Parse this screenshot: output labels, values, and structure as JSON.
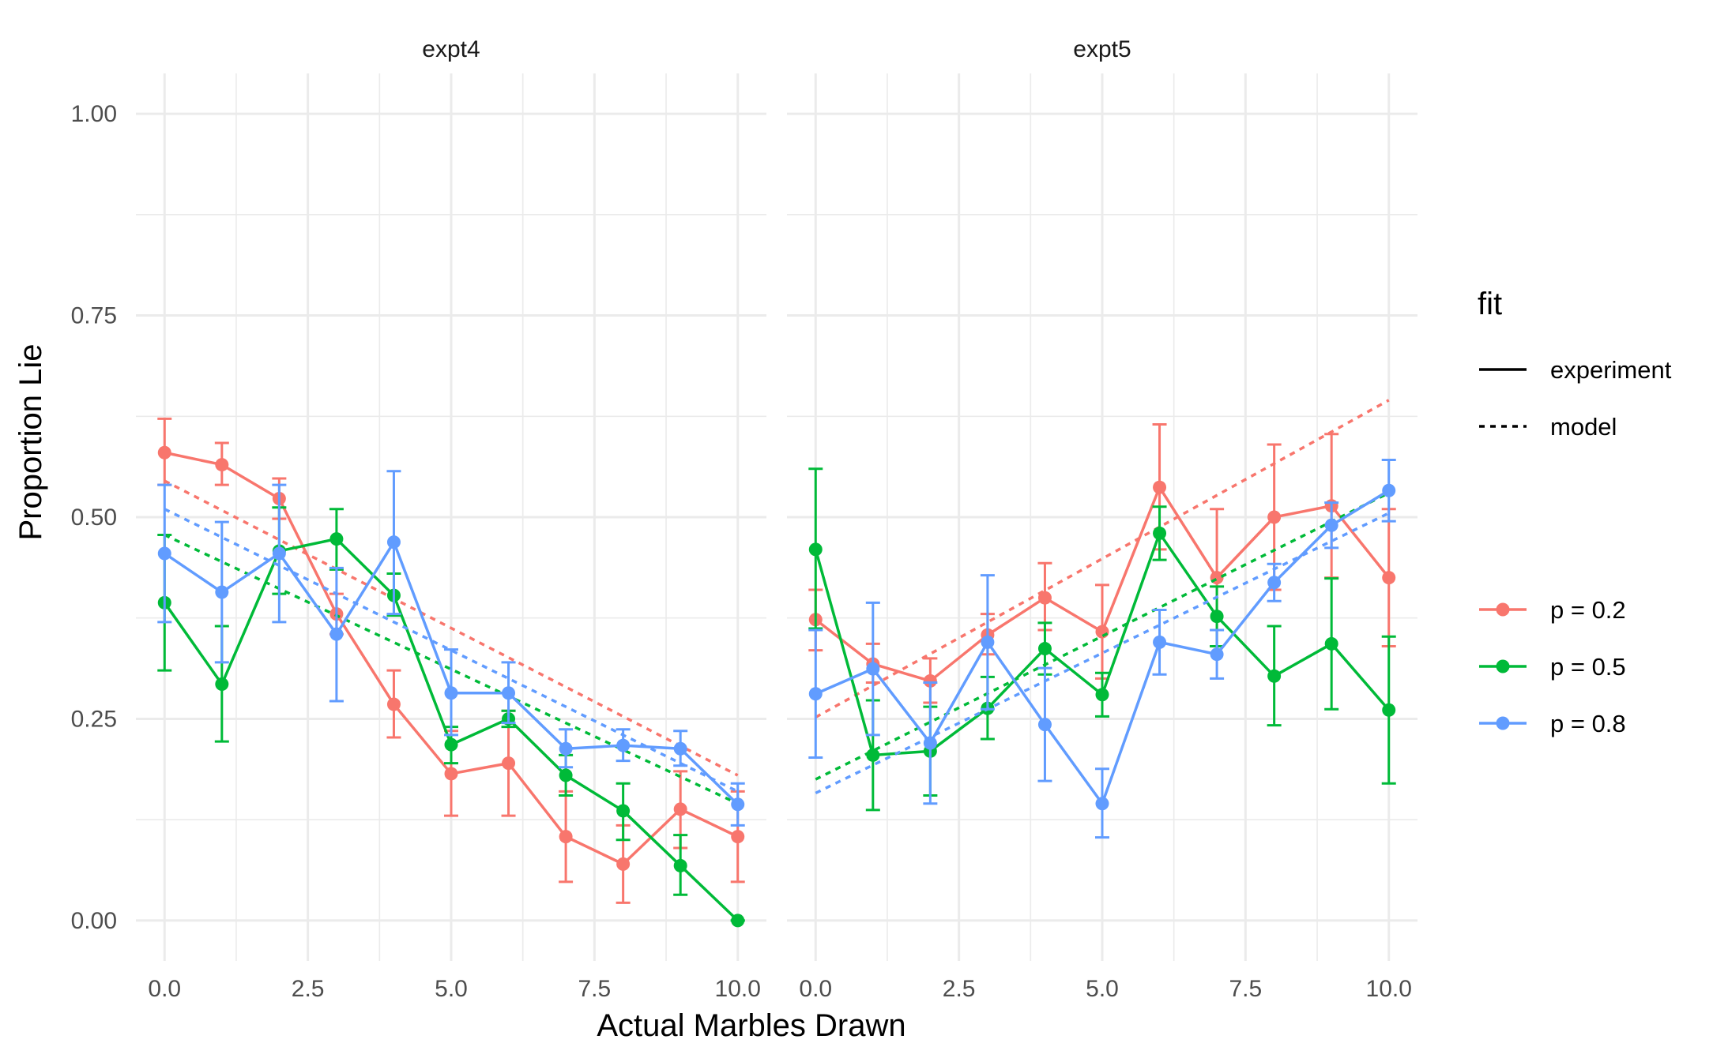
{
  "chart_data": {
    "type": "line",
    "xlabel": "Actual Marbles Drawn",
    "ylabel": "Proportion Lie",
    "xlim": [
      -0.5,
      10.5
    ],
    "ylim": [
      -0.05,
      1.05
    ],
    "x_ticks": [
      "0.0",
      "2.5",
      "5.0",
      "7.5",
      "10.0"
    ],
    "y_ticks": [
      "0.00",
      "0.25",
      "0.50",
      "0.75",
      "1.00"
    ],
    "grid": true,
    "legend": {
      "fit_title": "fit",
      "fit_entries": [
        {
          "label": "experiment",
          "linetype": "solid"
        },
        {
          "label": "model",
          "linetype": "dashed"
        }
      ],
      "color_entries": [
        {
          "label": "p = 0.2",
          "color": "#F8766D"
        },
        {
          "label": "p = 0.5",
          "color": "#00BA38"
        },
        {
          "label": "p = 0.8",
          "color": "#619CFF"
        }
      ]
    },
    "panels": [
      {
        "title": "expt4",
        "series": [
          {
            "name": "p = 0.2",
            "color": "#F8766D",
            "experiment": {
              "x": [
                0,
                1,
                2,
                3,
                4,
                5,
                6,
                7,
                8,
                9,
                10
              ],
              "y": [
                0.58,
                0.565,
                0.523,
                0.38,
                0.268,
                0.182,
                0.195,
                0.104,
                0.07,
                0.138,
                0.104
              ],
              "ylo": [
                0.54,
                0.54,
                0.498,
                0.355,
                0.227,
                0.13,
                0.13,
                0.048,
                0.022,
                0.09,
                0.048
              ],
              "yhi": [
                0.622,
                0.592,
                0.548,
                0.405,
                0.31,
                0.235,
                0.26,
                0.16,
                0.118,
                0.185,
                0.16
              ]
            },
            "model": {
              "x": [
                0,
                10
              ],
              "y": [
                0.545,
                0.18
              ]
            }
          },
          {
            "name": "p = 0.5",
            "color": "#00BA38",
            "experiment": {
              "x": [
                0,
                1,
                2,
                3,
                4,
                5,
                6,
                7,
                8,
                9,
                10
              ],
              "y": [
                0.394,
                0.293,
                0.458,
                0.473,
                0.403,
                0.218,
                0.25,
                0.18,
                0.136,
                0.068,
                0.0
              ],
              "ylo": [
                0.31,
                0.222,
                0.405,
                0.435,
                0.378,
                0.195,
                0.24,
                0.155,
                0.1,
                0.032,
                0.0
              ],
              "yhi": [
                0.478,
                0.365,
                0.512,
                0.51,
                0.43,
                0.24,
                0.26,
                0.205,
                0.17,
                0.106,
                0.0
              ]
            },
            "model": {
              "x": [
                0,
                10
              ],
              "y": [
                0.478,
                0.145
              ]
            }
          },
          {
            "name": "p = 0.8",
            "color": "#619CFF",
            "experiment": {
              "x": [
                0,
                1,
                2,
                3,
                4,
                5,
                6,
                7,
                8,
                9,
                10
              ],
              "y": [
                0.455,
                0.407,
                0.455,
                0.355,
                0.469,
                0.282,
                0.282,
                0.213,
                0.217,
                0.213,
                0.144
              ],
              "ylo": [
                0.37,
                0.32,
                0.37,
                0.272,
                0.38,
                0.23,
                0.245,
                0.19,
                0.198,
                0.192,
                0.118
              ],
              "yhi": [
                0.54,
                0.494,
                0.54,
                0.437,
                0.557,
                0.336,
                0.32,
                0.237,
                0.237,
                0.235,
                0.17
              ]
            },
            "model": {
              "x": [
                0,
                10
              ],
              "y": [
                0.51,
                0.16
              ]
            }
          }
        ]
      },
      {
        "title": "expt5",
        "series": [
          {
            "name": "p = 0.2",
            "color": "#F8766D",
            "experiment": {
              "x": [
                0,
                1,
                2,
                3,
                4,
                5,
                6,
                7,
                8,
                9,
                10
              ],
              "y": [
                0.373,
                0.318,
                0.297,
                0.354,
                0.4,
                0.358,
                0.537,
                0.425,
                0.5,
                0.514,
                0.425
              ],
              "ylo": [
                0.335,
                0.295,
                0.27,
                0.33,
                0.36,
                0.3,
                0.46,
                0.34,
                0.41,
                0.425,
                0.34
              ],
              "yhi": [
                0.41,
                0.343,
                0.325,
                0.38,
                0.443,
                0.416,
                0.615,
                0.51,
                0.59,
                0.603,
                0.51
              ]
            },
            "model": {
              "x": [
                0,
                10
              ],
              "y": [
                0.252,
                0.645
              ]
            }
          },
          {
            "name": "p = 0.5",
            "color": "#00BA38",
            "experiment": {
              "x": [
                0,
                1,
                2,
                3,
                4,
                5,
                6,
                7,
                8,
                9,
                10
              ],
              "y": [
                0.46,
                0.205,
                0.21,
                0.263,
                0.337,
                0.28,
                0.48,
                0.377,
                0.303,
                0.343,
                0.261
              ],
              "ylo": [
                0.362,
                0.137,
                0.155,
                0.225,
                0.305,
                0.253,
                0.447,
                0.34,
                0.242,
                0.262,
                0.17
              ],
              "yhi": [
                0.56,
                0.273,
                0.265,
                0.302,
                0.369,
                0.307,
                0.513,
                0.414,
                0.365,
                0.424,
                0.352
              ]
            },
            "model": {
              "x": [
                0,
                10
              ],
              "y": [
                0.175,
                0.53
              ]
            }
          },
          {
            "name": "p = 0.8",
            "color": "#619CFF",
            "experiment": {
              "x": [
                0,
                1,
                2,
                3,
                4,
                5,
                6,
                7,
                8,
                9,
                10
              ],
              "y": [
                0.281,
                0.312,
                0.22,
                0.345,
                0.243,
                0.145,
                0.345,
                0.33,
                0.419,
                0.49,
                0.533
              ],
              "ylo": [
                0.202,
                0.23,
                0.145,
                0.262,
                0.173,
                0.103,
                0.305,
                0.3,
                0.396,
                0.462,
                0.495
              ],
              "yhi": [
                0.36,
                0.394,
                0.295,
                0.428,
                0.313,
                0.188,
                0.385,
                0.36,
                0.442,
                0.518,
                0.571
              ]
            },
            "model": {
              "x": [
                0,
                10
              ],
              "y": [
                0.158,
                0.505
              ]
            }
          }
        ]
      }
    ]
  }
}
